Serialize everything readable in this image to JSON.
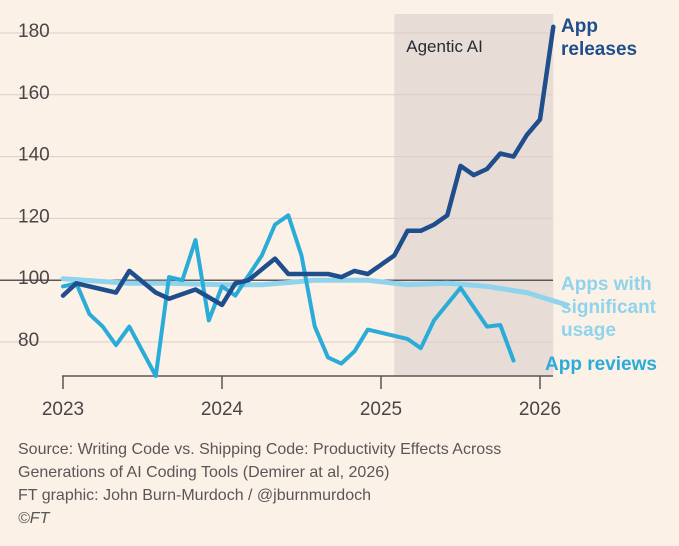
{
  "chart_data": {
    "type": "line",
    "title": "",
    "xlabel": "",
    "ylabel": "",
    "xlim": [
      "2023-01",
      "2026-04"
    ],
    "ylim": [
      65,
      185
    ],
    "y_ticks": [
      80,
      100,
      120,
      140,
      160,
      180
    ],
    "x_ticks": [
      "2023",
      "2024",
      "2025",
      "2026"
    ],
    "grid": true,
    "reference_line": 100,
    "shaded_region": {
      "label": "Agentic AI",
      "start": "2025-02",
      "end": "2026-02"
    },
    "series": [
      {
        "name": "App releases",
        "color": "#1f4e8c",
        "points": [
          [
            "2023-01",
            95
          ],
          [
            "2023-02",
            99
          ],
          [
            "2023-04",
            97
          ],
          [
            "2023-05",
            96
          ],
          [
            "2023-06",
            103
          ],
          [
            "2023-08",
            96
          ],
          [
            "2023-09",
            94
          ],
          [
            "2023-11",
            97
          ],
          [
            "2024-01",
            92
          ],
          [
            "2024-02",
            99
          ],
          [
            "2024-03",
            100
          ],
          [
            "2024-05",
            107
          ],
          [
            "2024-06",
            102
          ],
          [
            "2024-08",
            102
          ],
          [
            "2024-09",
            102
          ],
          [
            "2024-10",
            101
          ],
          [
            "2024-11",
            103
          ],
          [
            "2024-12",
            102
          ],
          [
            "2025-01",
            105
          ],
          [
            "2025-02",
            108
          ],
          [
            "2025-03",
            116
          ],
          [
            "2025-04",
            116
          ],
          [
            "2025-05",
            118
          ],
          [
            "2025-06",
            121
          ],
          [
            "2025-07",
            137
          ],
          [
            "2025-08",
            134
          ],
          [
            "2025-09",
            136
          ],
          [
            "2025-10",
            141
          ],
          [
            "2025-11",
            140
          ],
          [
            "2025-12",
            147
          ],
          [
            "2026-01",
            152
          ],
          [
            "2026-02",
            182
          ]
        ]
      },
      {
        "name": "Apps with significant usage",
        "color": "#8fd4ec",
        "points": [
          [
            "2023-01",
            100.5
          ],
          [
            "2023-06",
            99
          ],
          [
            "2023-09",
            99
          ],
          [
            "2024-01",
            98.5
          ],
          [
            "2024-04",
            98.5
          ],
          [
            "2024-08",
            100
          ],
          [
            "2024-12",
            100
          ],
          [
            "2025-03",
            98.5
          ],
          [
            "2025-06",
            99
          ],
          [
            "2025-09",
            98
          ],
          [
            "2025-12",
            96
          ],
          [
            "2026-03",
            92
          ]
        ]
      },
      {
        "name": "App reviews",
        "color": "#2bacd8",
        "points": [
          [
            "2023-01",
            98
          ],
          [
            "2023-02",
            99
          ],
          [
            "2023-03",
            89
          ],
          [
            "2023-04",
            85
          ],
          [
            "2023-05",
            79
          ],
          [
            "2023-06",
            85
          ],
          [
            "2023-08",
            69
          ],
          [
            "2023-09",
            101
          ],
          [
            "2023-10",
            100
          ],
          [
            "2023-11",
            113
          ],
          [
            "2023-12",
            87
          ],
          [
            "2024-01",
            98
          ],
          [
            "2024-02",
            95
          ],
          [
            "2024-04",
            108
          ],
          [
            "2024-05",
            118
          ],
          [
            "2024-06",
            121
          ],
          [
            "2024-07",
            108
          ],
          [
            "2024-08",
            85
          ],
          [
            "2024-09",
            75
          ],
          [
            "2024-10",
            73
          ],
          [
            "2024-11",
            77
          ],
          [
            "2024-12",
            84
          ],
          [
            "2025-01",
            83
          ],
          [
            "2025-03",
            81
          ],
          [
            "2025-04",
            78
          ],
          [
            "2025-05",
            87
          ],
          [
            "2025-07",
            97.5
          ],
          [
            "2025-09",
            85
          ],
          [
            "2025-10",
            85.5
          ],
          [
            "2025-11",
            74
          ]
        ]
      }
    ],
    "series_labels": [
      {
        "series": "App releases",
        "lines": [
          "App",
          "releases"
        ]
      },
      {
        "series": "Apps with significant usage",
        "lines": [
          "Apps with",
          "significant",
          "usage"
        ]
      },
      {
        "series": "App reviews",
        "lines": [
          "App reviews"
        ]
      }
    ]
  },
  "footer": {
    "source_line1": "Source: Writing Code vs. Shipping Code: Productivity Effects Across",
    "source_line2": "Generations of AI Coding Tools (Demirer at al, 2026)",
    "credit": "FT graphic: John Burn-Murdoch / @jburnmurdoch",
    "copyright": "©FT"
  }
}
